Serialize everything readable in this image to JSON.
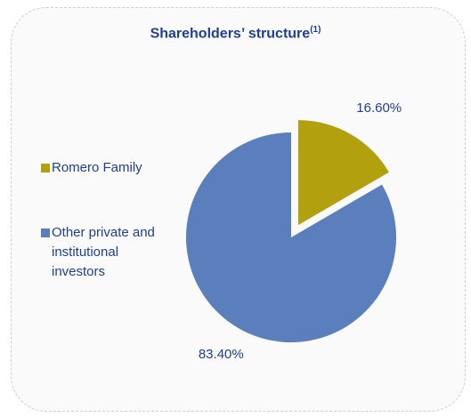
{
  "chart_data": {
    "type": "pie",
    "title": "Shareholders’ structure",
    "title_note": "(1)",
    "categories": [
      "Romero Family",
      "Other private and institutional investors"
    ],
    "values": [
      16.6,
      83.4
    ],
    "value_labels": [
      "16.60%",
      "83.40%"
    ],
    "colors": [
      "#b3a00f",
      "#5b7fbd"
    ],
    "exploded": [
      true,
      false
    ]
  }
}
